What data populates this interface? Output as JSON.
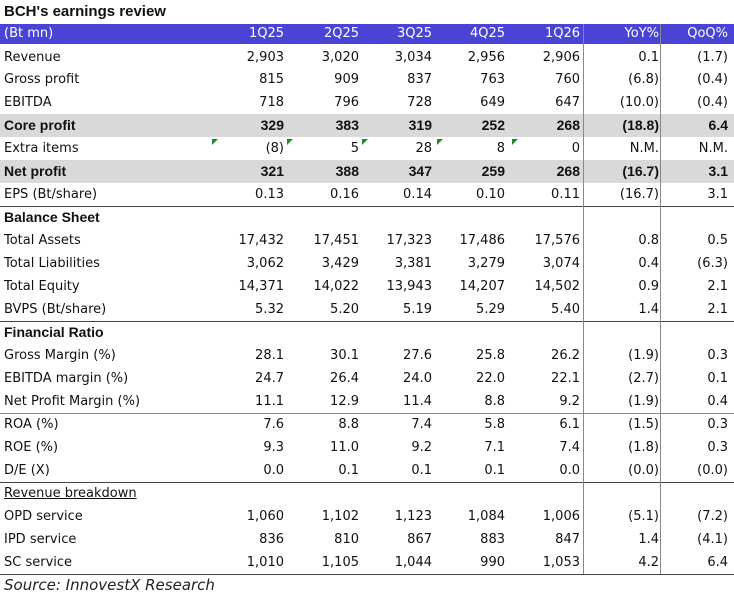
{
  "title": "BCH's earnings review",
  "header": [
    "(Bt mn)",
    "1Q25",
    "2Q25",
    "3Q25",
    "4Q25",
    "1Q26",
    "YoY%",
    "QoQ%"
  ],
  "income": [
    {
      "label": "Revenue",
      "values": [
        "2,903",
        "3,020",
        "3,034",
        "2,956",
        "2,906",
        "0.1",
        "(1.7)"
      ]
    },
    {
      "label": "Gross profit",
      "values": [
        "815",
        "909",
        "837",
        "763",
        "760",
        "(6.8)",
        "(0.4)"
      ]
    },
    {
      "label": "EBITDA",
      "values": [
        "718",
        "796",
        "728",
        "649",
        "647",
        "(10.0)",
        "(0.4)"
      ]
    },
    {
      "label": "Core profit",
      "values": [
        "329",
        "383",
        "319",
        "252",
        "268",
        "(18.8)",
        "6.4"
      ]
    },
    {
      "label": "Extra items",
      "values": [
        "(8)",
        "5",
        "28",
        "8",
        "0",
        "N.M.",
        "N.M."
      ]
    },
    {
      "label": "Net profit",
      "values": [
        "321",
        "388",
        "347",
        "259",
        "268",
        "(16.7)",
        "3.1"
      ]
    },
    {
      "label": "EPS (Bt/share)",
      "values": [
        "0.13",
        "0.16",
        "0.14",
        "0.10",
        "0.11",
        "(16.7)",
        "3.1"
      ]
    }
  ],
  "balance_title": "Balance Sheet",
  "balance": [
    {
      "label": "Total Assets",
      "values": [
        "17,432",
        "17,451",
        "17,323",
        "17,486",
        "17,576",
        "0.8",
        "0.5"
      ]
    },
    {
      "label": "Total Liabilities",
      "values": [
        "3,062",
        "3,429",
        "3,381",
        "3,279",
        "3,074",
        "0.4",
        "(6.3)"
      ]
    },
    {
      "label": "Total Equity",
      "values": [
        "14,371",
        "14,022",
        "13,943",
        "14,207",
        "14,502",
        "0.9",
        "2.1"
      ]
    },
    {
      "label": "BVPS (Bt/share)",
      "values": [
        "5.32",
        "5.20",
        "5.19",
        "5.29",
        "5.40",
        "1.4",
        "2.1"
      ]
    }
  ],
  "ratio_title": "Financial Ratio",
  "ratios": [
    {
      "label": "Gross Margin (%)",
      "values": [
        "28.1",
        "30.1",
        "27.6",
        "25.8",
        "26.2",
        "(1.9)",
        "0.3"
      ]
    },
    {
      "label": "EBITDA margin (%)",
      "values": [
        "24.7",
        "26.4",
        "24.0",
        "22.0",
        "22.1",
        "(2.7)",
        "0.1"
      ]
    },
    {
      "label": "Net Profit Margin (%)",
      "values": [
        "11.1",
        "12.9",
        "11.4",
        "8.8",
        "9.2",
        "(1.9)",
        "0.4"
      ]
    },
    {
      "label": "ROA (%)",
      "values": [
        "7.6",
        "8.8",
        "7.4",
        "5.8",
        "6.1",
        "(1.5)",
        "0.3"
      ]
    },
    {
      "label": "ROE (%)",
      "values": [
        "9.3",
        "11.0",
        "9.2",
        "7.1",
        "7.4",
        "(1.8)",
        "0.3"
      ]
    },
    {
      "label": "D/E (X)",
      "values": [
        "0.0",
        "0.1",
        "0.1",
        "0.1",
        "0.0",
        "(0.0)",
        "(0.0)"
      ]
    }
  ],
  "breakdown_title": "Revenue breakdown",
  "breakdown": [
    {
      "label": "OPD service",
      "values": [
        "1,060",
        "1,102",
        "1,123",
        "1,084",
        "1,006",
        "(5.1)",
        "(7.2)"
      ]
    },
    {
      "label": "IPD service",
      "values": [
        "836",
        "810",
        "867",
        "883",
        "847",
        "1.4",
        "(4.1)"
      ]
    },
    {
      "label": "SC service",
      "values": [
        "1,010",
        "1,105",
        "1,044",
        "990",
        "1,053",
        "4.2",
        "6.4"
      ]
    }
  ],
  "source": "Source: InnovestX Research",
  "colors": {
    "header_bg": "#4a43d6",
    "shade": "#d9d9d9",
    "comment_marker": "#1f8a2b"
  }
}
